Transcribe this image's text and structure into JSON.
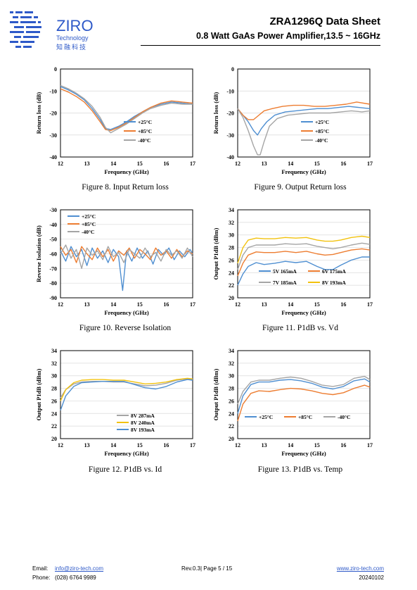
{
  "header": {
    "logo_name": "ZIRO",
    "logo_sub1": "Technology",
    "logo_sub2": "知融科技",
    "title": "ZRA1296Q Data Sheet",
    "subtitle": "0.8 Watt GaAs Power Amplifier,13.5 ~ 16GHz"
  },
  "captions": {
    "fig8": "Figure 8. Input Return loss",
    "fig9": "Figure 9. Output Return loss",
    "fig10": "Figure 10. Reverse Isolation",
    "fig11": "Figure 11. P1dB vs. Vd",
    "fig12": "Figure 12. P1dB vs. Id",
    "fig13": "Figure 13. P1dB vs. Temp"
  },
  "footer": {
    "email_label": "Email:",
    "email": "info@ziro-tech.com",
    "phone_label": "Phone:",
    "phone": "(028) 6764 9989",
    "page": "Rev.0.3| Page 5 / 15",
    "website": "www.ziro-tech.com",
    "date": "20240102"
  },
  "colors": {
    "blue": "#4f8fd1",
    "orange": "#ed7d31",
    "gray": "#a5a5a5",
    "yellow": "#f2c20e"
  },
  "chart_data": [
    {
      "id": "fig8",
      "type": "line",
      "xlabel": "Frequency (GHz)",
      "ylabel": "Return loss (dB)",
      "xlim": [
        12,
        17
      ],
      "ylim": [
        -40,
        0
      ],
      "xticks": [
        12,
        13,
        14,
        15,
        16,
        17
      ],
      "yticks": [
        0,
        -10,
        -20,
        -30,
        -40
      ],
      "legend_position": "right-middle",
      "series": [
        {
          "name": "+25°C",
          "color": "#4f8fd1",
          "x": [
            12,
            12.3,
            12.6,
            12.9,
            13.2,
            13.5,
            13.7,
            13.9,
            14.2,
            14.5,
            14.8,
            15.1,
            15.4,
            15.8,
            16.2,
            16.6,
            17
          ],
          "y": [
            -8,
            -9.5,
            -11.5,
            -14,
            -18,
            -23,
            -27,
            -27.5,
            -26,
            -24,
            -21.5,
            -19.5,
            -17.5,
            -16,
            -15,
            -15.5,
            -16
          ]
        },
        {
          "name": "+85°C",
          "color": "#ed7d31",
          "x": [
            12,
            12.3,
            12.6,
            12.9,
            13.2,
            13.5,
            13.7,
            13.9,
            14.2,
            14.5,
            14.8,
            15.1,
            15.4,
            15.8,
            16.2,
            16.6,
            17
          ],
          "y": [
            -9,
            -10.5,
            -12.5,
            -15,
            -19,
            -24,
            -27.5,
            -28,
            -26.5,
            -24.5,
            -22,
            -19.5,
            -17.5,
            -15.5,
            -14.5,
            -15,
            -15.5
          ]
        },
        {
          "name": "-40°C",
          "color": "#a5a5a5",
          "x": [
            12,
            12.3,
            12.6,
            12.9,
            13.2,
            13.5,
            13.7,
            13.9,
            14.2,
            14.5,
            14.8,
            15.1,
            15.4,
            15.8,
            16.2,
            16.6,
            17
          ],
          "y": [
            -7.5,
            -9,
            -11,
            -13.5,
            -17,
            -22,
            -26.5,
            -29,
            -27,
            -25,
            -22.5,
            -20,
            -18,
            -16.5,
            -15.5,
            -16,
            -16
          ]
        }
      ]
    },
    {
      "id": "fig9",
      "type": "line",
      "xlabel": "Frequency (GHz)",
      "ylabel": "Return loss (dB)",
      "xlim": [
        12,
        17
      ],
      "ylim": [
        -40,
        0
      ],
      "xticks": [
        12,
        13,
        14,
        15,
        16,
        17
      ],
      "yticks": [
        0,
        -10,
        -20,
        -30,
        -40
      ],
      "legend_position": "right-middle",
      "series": [
        {
          "name": "+25°C",
          "color": "#4f8fd1",
          "x": [
            12,
            12.2,
            12.4,
            12.6,
            12.75,
            12.9,
            13.1,
            13.4,
            13.8,
            14.2,
            14.6,
            15.0,
            15.4,
            15.8,
            16.2,
            16.6,
            17
          ],
          "y": [
            -18,
            -21,
            -24,
            -28,
            -30,
            -27,
            -24,
            -21,
            -19.5,
            -19,
            -18.5,
            -18,
            -18,
            -17.5,
            -17,
            -17.5,
            -18
          ]
        },
        {
          "name": "+85°C",
          "color": "#ed7d31",
          "x": [
            12,
            12.2,
            12.4,
            12.6,
            12.8,
            13.0,
            13.3,
            13.7,
            14.1,
            14.5,
            14.9,
            15.3,
            15.7,
            16.1,
            16.5,
            17
          ],
          "y": [
            -18,
            -21,
            -23,
            -23,
            -21,
            -19,
            -18,
            -17,
            -16.5,
            -16.5,
            -17,
            -17,
            -16.5,
            -16,
            -15,
            -16
          ]
        },
        {
          "name": "-40°C",
          "color": "#a5a5a5",
          "x": [
            12,
            12.2,
            12.4,
            12.6,
            12.75,
            12.85,
            13.0,
            13.2,
            13.5,
            13.9,
            14.3,
            14.7,
            15.1,
            15.5,
            15.9,
            16.3,
            16.7,
            17
          ],
          "y": [
            -18,
            -22,
            -28,
            -35,
            -39,
            -39,
            -33,
            -26,
            -22.5,
            -21,
            -20.5,
            -20,
            -20,
            -20,
            -19.5,
            -19,
            -19.5,
            -19
          ]
        }
      ]
    },
    {
      "id": "fig10",
      "type": "line",
      "xlabel": "Frequency (GHz)",
      "ylabel": "Reverse Isolation (dB)",
      "xlim": [
        12,
        17
      ],
      "ylim": [
        -90,
        -30
      ],
      "xticks": [
        12,
        13,
        14,
        15,
        16,
        17
      ],
      "yticks": [
        -30,
        -40,
        -50,
        -60,
        -70,
        -80,
        -90
      ],
      "legend_position": "top-left",
      "series": [
        {
          "name": "+25°C",
          "color": "#4f8fd1",
          "x": [
            12,
            12.2,
            12.4,
            12.6,
            12.8,
            13,
            13.2,
            13.4,
            13.6,
            13.8,
            14,
            14.2,
            14.35,
            14.5,
            14.7,
            14.9,
            15.1,
            15.3,
            15.5,
            15.7,
            15.9,
            16.1,
            16.3,
            16.5,
            16.7,
            16.9,
            17
          ],
          "y": [
            -58,
            -65,
            -55,
            -62,
            -57,
            -68,
            -56,
            -63,
            -58,
            -66,
            -57,
            -62,
            -85,
            -58,
            -65,
            -56,
            -63,
            -58,
            -67,
            -57,
            -61,
            -56,
            -64,
            -58,
            -62,
            -57,
            -60
          ]
        },
        {
          "name": "+85°C",
          "color": "#ed7d31",
          "x": [
            12,
            12.2,
            12.4,
            12.6,
            12.8,
            13,
            13.2,
            13.4,
            13.6,
            13.8,
            14,
            14.2,
            14.4,
            14.6,
            14.8,
            15,
            15.2,
            15.4,
            15.6,
            15.8,
            16,
            16.2,
            16.4,
            16.6,
            16.8,
            17
          ],
          "y": [
            -55,
            -61,
            -57,
            -66,
            -55,
            -60,
            -64,
            -56,
            -62,
            -57,
            -65,
            -58,
            -61,
            -56,
            -63,
            -57,
            -60,
            -64,
            -56,
            -61,
            -58,
            -63,
            -57,
            -62,
            -58,
            -60
          ]
        },
        {
          "name": "-40°C",
          "color": "#a5a5a5",
          "x": [
            12,
            12.2,
            12.4,
            12.6,
            12.8,
            13,
            13.2,
            13.4,
            13.6,
            13.8,
            14,
            14.2,
            14.4,
            14.6,
            14.8,
            15,
            15.2,
            15.4,
            15.6,
            15.8,
            16,
            16.2,
            16.4,
            16.6,
            16.8,
            17
          ],
          "y": [
            -60,
            -54,
            -63,
            -57,
            -70,
            -56,
            -61,
            -58,
            -64,
            -55,
            -62,
            -59,
            -66,
            -57,
            -60,
            -63,
            -56,
            -62,
            -59,
            -65,
            -57,
            -61,
            -58,
            -63,
            -56,
            -62
          ]
        }
      ]
    },
    {
      "id": "fig11",
      "type": "line",
      "xlabel": "Frequency (GHz)",
      "ylabel": "Output P1dB (dBm)",
      "xlim": [
        12,
        17
      ],
      "ylim": [
        20,
        34
      ],
      "xticks": [
        12,
        13,
        14,
        15,
        16,
        17
      ],
      "yticks": [
        20,
        22,
        24,
        26,
        28,
        30,
        32,
        34
      ],
      "legend_position": "bottom-right",
      "series": [
        {
          "name": "5V 165mA",
          "color": "#4f8fd1",
          "x": [
            12,
            12.2,
            12.4,
            12.7,
            13,
            13.4,
            13.8,
            14.2,
            14.6,
            15,
            15.3,
            15.6,
            15.9,
            16.3,
            16.7,
            17
          ],
          "y": [
            22,
            23.8,
            25,
            25.6,
            25.3,
            25.5,
            25.8,
            25.6,
            25.8,
            25,
            24.5,
            24.5,
            25.2,
            26,
            26.5,
            26.5
          ]
        },
        {
          "name": "6V 175mA",
          "color": "#ed7d31",
          "x": [
            12,
            12.2,
            12.4,
            12.7,
            13,
            13.4,
            13.8,
            14.2,
            14.6,
            15,
            15.3,
            15.6,
            15.9,
            16.3,
            16.7,
            17
          ],
          "y": [
            23.5,
            25.5,
            26.8,
            27.3,
            27.2,
            27.2,
            27.4,
            27.2,
            27.4,
            27,
            26.8,
            26.9,
            27.2,
            27.6,
            27.8,
            27.6
          ]
        },
        {
          "name": "7V 185mA",
          "color": "#a5a5a5",
          "x": [
            12,
            12.2,
            12.4,
            12.7,
            13,
            13.4,
            13.8,
            14.2,
            14.6,
            15,
            15.3,
            15.6,
            15.9,
            16.3,
            16.7,
            17
          ],
          "y": [
            24.5,
            26.8,
            28,
            28.4,
            28.4,
            28.4,
            28.6,
            28.5,
            28.6,
            28.2,
            28,
            27.8,
            28,
            28.4,
            28.7,
            28.5
          ]
        },
        {
          "name": "8V 193mA",
          "color": "#f2c20e",
          "x": [
            12,
            12.2,
            12.4,
            12.7,
            13,
            13.4,
            13.8,
            14.2,
            14.6,
            15,
            15.3,
            15.6,
            15.9,
            16.3,
            16.7,
            17
          ],
          "y": [
            25.5,
            28,
            29.2,
            29.5,
            29.4,
            29.4,
            29.6,
            29.5,
            29.6,
            29.2,
            29,
            29,
            29.2,
            29.6,
            29.8,
            29.6
          ]
        }
      ]
    },
    {
      "id": "fig12",
      "type": "line",
      "xlabel": "Frequency (GHz)",
      "ylabel": "Output P1dB (dBm)",
      "xlim": [
        12,
        17
      ],
      "ylim": [
        20,
        34
      ],
      "xticks": [
        12,
        13,
        14,
        15,
        16,
        17
      ],
      "yticks": [
        20,
        22,
        24,
        26,
        28,
        30,
        32,
        34
      ],
      "legend_position": "bottom-right",
      "series": [
        {
          "name": "8V 287mA",
          "color": "#a5a5a5",
          "x": [
            12,
            12.2,
            12.5,
            12.8,
            13.2,
            13.6,
            14,
            14.4,
            14.8,
            15.2,
            15.6,
            16,
            16.4,
            16.8,
            17
          ],
          "y": [
            26.5,
            27.8,
            28.7,
            29,
            29.1,
            29.1,
            29,
            29,
            28.7,
            28.4,
            28.5,
            28.8,
            29.3,
            29.5,
            29.4
          ]
        },
        {
          "name": "8V 240mA",
          "color": "#f2c20e",
          "x": [
            12,
            12.2,
            12.5,
            12.8,
            13.2,
            13.6,
            14,
            14.4,
            14.8,
            15.2,
            15.6,
            16,
            16.4,
            16.8,
            17
          ],
          "y": [
            26,
            27.8,
            28.9,
            29.3,
            29.4,
            29.4,
            29.3,
            29.3,
            29,
            28.7,
            28.8,
            29,
            29.4,
            29.6,
            29.5
          ]
        },
        {
          "name": "8V 193mA",
          "color": "#4f8fd1",
          "x": [
            12,
            12.2,
            12.5,
            12.8,
            13.2,
            13.6,
            14,
            14.4,
            14.8,
            15.2,
            15.6,
            16,
            16.4,
            16.8,
            17
          ],
          "y": [
            24.5,
            26.8,
            28.3,
            28.9,
            29,
            29.1,
            29.1,
            29.1,
            28.6,
            28.1,
            27.9,
            28.3,
            29,
            29.4,
            29.3
          ]
        }
      ]
    },
    {
      "id": "fig13",
      "type": "line",
      "xlabel": "Frequency (GHz)",
      "ylabel": "Output P1dB (dBm)",
      "xlim": [
        12,
        17
      ],
      "ylim": [
        20,
        34
      ],
      "xticks": [
        12,
        13,
        14,
        15,
        16,
        17
      ],
      "yticks": [
        20,
        22,
        24,
        26,
        28,
        30,
        32,
        34
      ],
      "legend_position": "bottom-middle",
      "series": [
        {
          "name": "+25°C",
          "color": "#4f8fd1",
          "x": [
            12,
            12.2,
            12.5,
            12.8,
            13.2,
            13.6,
            14,
            14.4,
            14.8,
            15.2,
            15.6,
            16,
            16.4,
            16.8,
            17
          ],
          "y": [
            24,
            26.8,
            28.6,
            29,
            29,
            29.3,
            29.4,
            29.2,
            28.8,
            28.2,
            27.9,
            28.3,
            29.2,
            29.5,
            29
          ]
        },
        {
          "name": "+85°C",
          "color": "#ed7d31",
          "x": [
            12,
            12.2,
            12.5,
            12.8,
            13.2,
            13.6,
            14,
            14.4,
            14.8,
            15.2,
            15.6,
            16,
            16.4,
            16.8,
            17
          ],
          "y": [
            22.8,
            25.5,
            27.2,
            27.6,
            27.5,
            27.8,
            28,
            27.9,
            27.6,
            27.2,
            27,
            27.3,
            28,
            28.5,
            28.2
          ]
        },
        {
          "name": "-40°C",
          "color": "#a5a5a5",
          "x": [
            12,
            12.2,
            12.5,
            12.8,
            13.2,
            13.6,
            14,
            14.4,
            14.8,
            15.2,
            15.6,
            16,
            16.4,
            16.8,
            17
          ],
          "y": [
            25.5,
            27.5,
            29,
            29.3,
            29.3,
            29.6,
            29.8,
            29.6,
            29.1,
            28.5,
            28.3,
            28.6,
            29.6,
            29.9,
            29.4
          ]
        }
      ]
    }
  ]
}
